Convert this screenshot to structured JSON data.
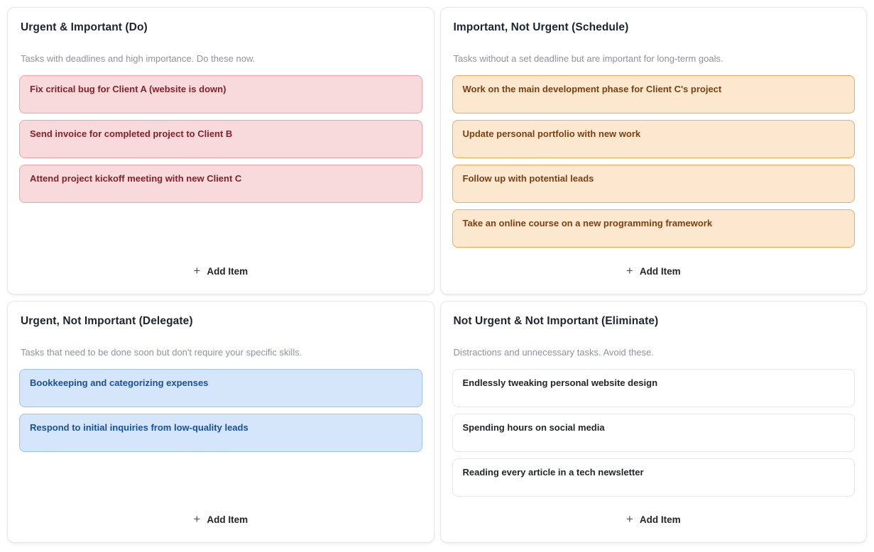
{
  "quadrants": [
    {
      "id": "do",
      "title": "Urgent & Important (Do)",
      "description": "Tasks with deadlines and high importance. Do these now.",
      "items": [
        "Fix critical bug for Client A (website is down)",
        "Send invoice for completed project to Client B",
        "Attend project kickoff meeting with new Client C"
      ],
      "add_button": {
        "icon": "+",
        "label": "Add Item"
      },
      "colors": {
        "card_bg": "#f9dadc",
        "card_border": "#efa2ab",
        "card_text": "#842029"
      }
    },
    {
      "id": "schedule",
      "title": "Important, Not Urgent (Schedule)",
      "description": "Tasks without a set deadline but are important for long-term goals.",
      "items": [
        "Work on the main development phase for Client C's project",
        "Update personal portfolio with new work",
        "Follow up with potential leads",
        "Take an online course on a new programming framework"
      ],
      "add_button": {
        "icon": "+",
        "label": "Add Item"
      },
      "colors": {
        "card_bg": "#fce8cf",
        "card_border": "#eeaa5f",
        "card_text": "#7d3f10"
      }
    },
    {
      "id": "delegate",
      "title": "Urgent, Not Important (Delegate)",
      "description": "Tasks that need to be done soon but don't require your specific skills.",
      "items": [
        "Bookkeeping and categorizing expenses",
        "Respond to initial inquiries from low-quality leads"
      ],
      "add_button": {
        "icon": "+",
        "label": "Add Item"
      },
      "colors": {
        "card_bg": "#d5e6fa",
        "card_border": "#9cc2f0",
        "card_text": "#174f9e"
      }
    },
    {
      "id": "eliminate",
      "title": "Not Urgent & Not Important (Eliminate)",
      "description": "Distractions and unnecessary tasks. Avoid these.",
      "items": [
        "Endlessly tweaking personal website design",
        "Spending hours on social media",
        "Reading every article in a tech newsletter"
      ],
      "add_button": {
        "icon": "+",
        "label": "Add Item"
      },
      "colors": {
        "card_bg": "#ffffff",
        "card_border": "#e4e7ea",
        "card_text": "#212529"
      }
    }
  ]
}
